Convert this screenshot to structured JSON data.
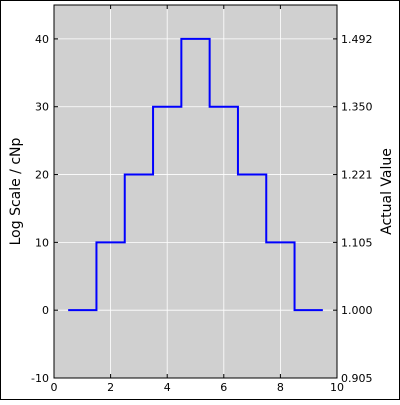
{
  "chart_data": {
    "type": "line",
    "drawstyle": "steps-mid",
    "xlim": [
      0,
      10
    ],
    "ylim": [
      -10,
      45
    ],
    "x_ticks": [
      0,
      2,
      4,
      6,
      8,
      10
    ],
    "y_ticks": [
      -10,
      0,
      10,
      20,
      30,
      40
    ],
    "ylabel": "Log Scale / cNp",
    "ylabel_right": "Actual Value",
    "right_tick_labels": [
      "0.905",
      "1.000",
      "1.105",
      "1.221",
      "1.350",
      "1.492"
    ],
    "grid": true,
    "series": [
      {
        "x": [
          1,
          2,
          3,
          4,
          5,
          6,
          7,
          8,
          9
        ],
        "values": [
          0,
          10,
          20,
          30,
          40,
          30,
          20,
          10,
          0
        ],
        "color": "#0000ff"
      }
    ],
    "colors": {
      "plot_background": "#d0d0d0",
      "grid": "#ffffff",
      "line": "#0000ff",
      "axes": "#000000"
    }
  }
}
